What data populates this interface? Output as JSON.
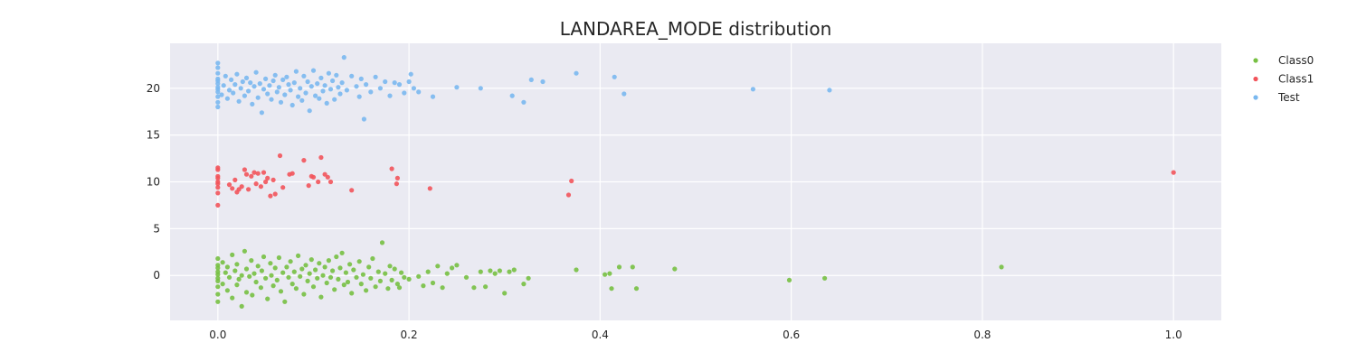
{
  "chart_data": {
    "type": "scatter",
    "title": "LANDAREA_MODE distribution",
    "xlabel": "",
    "ylabel": "",
    "xlim": [
      -0.05,
      1.05
    ],
    "ylim": [
      -4.8,
      24.8
    ],
    "xticks": [
      0.0,
      0.2,
      0.4,
      0.6,
      0.8,
      1.0
    ],
    "xtick_labels": [
      "0.0",
      "0.2",
      "0.4",
      "0.6",
      "0.8",
      "1.0"
    ],
    "yticks": [
      0,
      5,
      10,
      15,
      20
    ],
    "ytick_labels": [
      "0",
      "5",
      "10",
      "15",
      "20"
    ],
    "grid": true,
    "legend_position": "right, outside plot",
    "series": [
      {
        "name": "Class0",
        "color": "#77c043",
        "points": [
          [
            0.0,
            -0.3
          ],
          [
            0.0,
            0.4
          ],
          [
            0.0,
            -1.2
          ],
          [
            0.0,
            1.1
          ],
          [
            0.0,
            -2.0
          ],
          [
            0.0,
            0.8
          ],
          [
            0.0,
            -0.6
          ],
          [
            0.0,
            1.8
          ],
          [
            0.0,
            -2.8
          ],
          [
            0.0,
            0.1
          ],
          [
            0.005,
            -0.9
          ],
          [
            0.005,
            1.4
          ],
          [
            0.008,
            0.3
          ],
          [
            0.01,
            -1.6
          ],
          [
            0.01,
            0.9
          ],
          [
            0.012,
            -0.2
          ],
          [
            0.015,
            2.2
          ],
          [
            0.015,
            -2.4
          ],
          [
            0.018,
            0.5
          ],
          [
            0.02,
            -1.0
          ],
          [
            0.02,
            1.2
          ],
          [
            0.022,
            -0.4
          ],
          [
            0.025,
            0.0
          ],
          [
            0.025,
            -3.3
          ],
          [
            0.028,
            2.6
          ],
          [
            0.03,
            -1.8
          ],
          [
            0.03,
            0.7
          ],
          [
            0.033,
            -0.1
          ],
          [
            0.035,
            1.6
          ],
          [
            0.036,
            -2.1
          ],
          [
            0.038,
            0.2
          ],
          [
            0.04,
            -0.7
          ],
          [
            0.042,
            1.0
          ],
          [
            0.045,
            -1.3
          ],
          [
            0.046,
            0.5
          ],
          [
            0.048,
            2.0
          ],
          [
            0.05,
            -0.3
          ],
          [
            0.052,
            -2.5
          ],
          [
            0.055,
            1.3
          ],
          [
            0.056,
            0.0
          ],
          [
            0.058,
            -1.1
          ],
          [
            0.06,
            0.8
          ],
          [
            0.062,
            -0.5
          ],
          [
            0.064,
            1.9
          ],
          [
            0.066,
            -1.7
          ],
          [
            0.068,
            0.3
          ],
          [
            0.07,
            -2.8
          ],
          [
            0.072,
            0.9
          ],
          [
            0.074,
            -0.2
          ],
          [
            0.076,
            1.5
          ],
          [
            0.078,
            -0.9
          ],
          [
            0.08,
            0.4
          ],
          [
            0.082,
            -1.4
          ],
          [
            0.084,
            2.1
          ],
          [
            0.086,
            -0.1
          ],
          [
            0.088,
            0.7
          ],
          [
            0.09,
            -2.0
          ],
          [
            0.092,
            1.1
          ],
          [
            0.094,
            -0.6
          ],
          [
            0.096,
            0.2
          ],
          [
            0.098,
            1.7
          ],
          [
            0.1,
            -1.2
          ],
          [
            0.102,
            0.6
          ],
          [
            0.104,
            -0.3
          ],
          [
            0.106,
            1.3
          ],
          [
            0.108,
            -2.3
          ],
          [
            0.11,
            0.0
          ],
          [
            0.112,
            0.9
          ],
          [
            0.114,
            -0.8
          ],
          [
            0.116,
            1.6
          ],
          [
            0.118,
            -0.2
          ],
          [
            0.12,
            0.5
          ],
          [
            0.122,
            -1.5
          ],
          [
            0.124,
            2.0
          ],
          [
            0.126,
            -0.4
          ],
          [
            0.128,
            0.8
          ],
          [
            0.13,
            2.4
          ],
          [
            0.132,
            -1.0
          ],
          [
            0.134,
            0.3
          ],
          [
            0.136,
            -0.7
          ],
          [
            0.138,
            1.2
          ],
          [
            0.14,
            -1.9
          ],
          [
            0.142,
            0.6
          ],
          [
            0.145,
            -0.2
          ],
          [
            0.148,
            1.5
          ],
          [
            0.15,
            -0.9
          ],
          [
            0.152,
            0.1
          ],
          [
            0.155,
            -1.6
          ],
          [
            0.158,
            0.9
          ],
          [
            0.16,
            -0.3
          ],
          [
            0.162,
            1.8
          ],
          [
            0.165,
            -1.2
          ],
          [
            0.168,
            0.4
          ],
          [
            0.17,
            -0.6
          ],
          [
            0.172,
            3.5
          ],
          [
            0.175,
            0.2
          ],
          [
            0.178,
            -1.4
          ],
          [
            0.18,
            1.0
          ],
          [
            0.182,
            -0.5
          ],
          [
            0.185,
            0.7
          ],
          [
            0.188,
            -0.9
          ],
          [
            0.19,
            -1.3
          ],
          [
            0.192,
            0.3
          ],
          [
            0.195,
            -0.2
          ],
          [
            0.2,
            -0.4
          ],
          [
            0.21,
            -0.1
          ],
          [
            0.215,
            -1.1
          ],
          [
            0.22,
            0.4
          ],
          [
            0.225,
            -0.8
          ],
          [
            0.23,
            1.0
          ],
          [
            0.235,
            -1.3
          ],
          [
            0.24,
            0.2
          ],
          [
            0.245,
            0.8
          ],
          [
            0.25,
            1.1
          ],
          [
            0.26,
            -0.2
          ],
          [
            0.268,
            -1.3
          ],
          [
            0.275,
            0.4
          ],
          [
            0.28,
            -1.2
          ],
          [
            0.285,
            0.5
          ],
          [
            0.29,
            0.2
          ],
          [
            0.295,
            0.5
          ],
          [
            0.3,
            -1.9
          ],
          [
            0.305,
            0.4
          ],
          [
            0.31,
            0.6
          ],
          [
            0.32,
            -0.9
          ],
          [
            0.325,
            -0.3
          ],
          [
            0.375,
            0.6
          ],
          [
            0.405,
            0.1
          ],
          [
            0.41,
            0.2
          ],
          [
            0.412,
            -1.4
          ],
          [
            0.42,
            0.9
          ],
          [
            0.434,
            0.9
          ],
          [
            0.438,
            -1.4
          ],
          [
            0.478,
            0.7
          ],
          [
            0.598,
            -0.5
          ],
          [
            0.635,
            -0.3
          ],
          [
            0.82,
            0.9
          ]
        ]
      },
      {
        "name": "Class1",
        "color": "#f2545b",
        "points": [
          [
            0.0,
            7.5
          ],
          [
            0.0,
            8.8
          ],
          [
            0.0,
            9.4
          ],
          [
            0.0,
            10.0
          ],
          [
            0.0,
            10.4
          ],
          [
            0.0,
            11.3
          ],
          [
            0.0,
            11.5
          ],
          [
            0.0,
            9.8
          ],
          [
            0.0,
            10.6
          ],
          [
            0.012,
            9.7
          ],
          [
            0.015,
            9.3
          ],
          [
            0.018,
            10.2
          ],
          [
            0.02,
            8.9
          ],
          [
            0.022,
            9.2
          ],
          [
            0.025,
            9.5
          ],
          [
            0.028,
            11.3
          ],
          [
            0.03,
            10.8
          ],
          [
            0.032,
            9.2
          ],
          [
            0.035,
            10.6
          ],
          [
            0.038,
            11.0
          ],
          [
            0.04,
            9.8
          ],
          [
            0.042,
            10.9
          ],
          [
            0.045,
            9.5
          ],
          [
            0.048,
            11.0
          ],
          [
            0.05,
            10.0
          ],
          [
            0.052,
            10.4
          ],
          [
            0.055,
            8.5
          ],
          [
            0.058,
            10.2
          ],
          [
            0.06,
            8.7
          ],
          [
            0.065,
            12.8
          ],
          [
            0.068,
            9.4
          ],
          [
            0.075,
            10.8
          ],
          [
            0.078,
            10.9
          ],
          [
            0.09,
            12.3
          ],
          [
            0.095,
            9.6
          ],
          [
            0.098,
            10.6
          ],
          [
            0.1,
            10.5
          ],
          [
            0.105,
            10.0
          ],
          [
            0.108,
            12.6
          ],
          [
            0.112,
            10.8
          ],
          [
            0.115,
            10.5
          ],
          [
            0.118,
            10.0
          ],
          [
            0.14,
            9.1
          ],
          [
            0.182,
            11.4
          ],
          [
            0.187,
            9.8
          ],
          [
            0.188,
            10.4
          ],
          [
            0.222,
            9.3
          ],
          [
            0.367,
            8.6
          ],
          [
            0.37,
            10.1
          ],
          [
            1.0,
            11.0
          ]
        ]
      },
      {
        "name": "Test",
        "color": "#7ab8ef",
        "points": [
          [
            0.0,
            18.0
          ],
          [
            0.0,
            18.5
          ],
          [
            0.0,
            19.1
          ],
          [
            0.0,
            19.6
          ],
          [
            0.0,
            20.1
          ],
          [
            0.0,
            20.5
          ],
          [
            0.0,
            21.0
          ],
          [
            0.0,
            21.6
          ],
          [
            0.0,
            22.2
          ],
          [
            0.0,
            22.7
          ],
          [
            0.0,
            19.9
          ],
          [
            0.0,
            20.8
          ],
          [
            0.004,
            19.3
          ],
          [
            0.006,
            20.3
          ],
          [
            0.008,
            21.3
          ],
          [
            0.01,
            18.9
          ],
          [
            0.012,
            19.8
          ],
          [
            0.014,
            20.9
          ],
          [
            0.016,
            19.5
          ],
          [
            0.018,
            20.4
          ],
          [
            0.02,
            21.5
          ],
          [
            0.022,
            18.6
          ],
          [
            0.024,
            20.0
          ],
          [
            0.026,
            20.7
          ],
          [
            0.028,
            19.2
          ],
          [
            0.03,
            21.1
          ],
          [
            0.032,
            19.7
          ],
          [
            0.034,
            20.6
          ],
          [
            0.036,
            18.3
          ],
          [
            0.038,
            20.2
          ],
          [
            0.04,
            21.7
          ],
          [
            0.042,
            19.0
          ],
          [
            0.044,
            20.5
          ],
          [
            0.046,
            17.4
          ],
          [
            0.048,
            19.9
          ],
          [
            0.05,
            21.0
          ],
          [
            0.052,
            19.4
          ],
          [
            0.054,
            20.3
          ],
          [
            0.056,
            18.8
          ],
          [
            0.058,
            20.8
          ],
          [
            0.06,
            21.4
          ],
          [
            0.062,
            19.6
          ],
          [
            0.064,
            20.1
          ],
          [
            0.066,
            18.5
          ],
          [
            0.068,
            20.9
          ],
          [
            0.07,
            19.3
          ],
          [
            0.072,
            21.2
          ],
          [
            0.074,
            20.4
          ],
          [
            0.076,
            19.8
          ],
          [
            0.078,
            18.2
          ],
          [
            0.08,
            20.6
          ],
          [
            0.082,
            21.8
          ],
          [
            0.084,
            19.1
          ],
          [
            0.086,
            20.0
          ],
          [
            0.088,
            18.7
          ],
          [
            0.09,
            21.3
          ],
          [
            0.092,
            19.5
          ],
          [
            0.094,
            20.7
          ],
          [
            0.096,
            17.6
          ],
          [
            0.098,
            20.2
          ],
          [
            0.1,
            21.9
          ],
          [
            0.102,
            19.2
          ],
          [
            0.104,
            20.5
          ],
          [
            0.106,
            18.9
          ],
          [
            0.108,
            21.1
          ],
          [
            0.11,
            19.7
          ],
          [
            0.112,
            20.3
          ],
          [
            0.114,
            18.4
          ],
          [
            0.116,
            21.6
          ],
          [
            0.118,
            19.9
          ],
          [
            0.12,
            20.8
          ],
          [
            0.122,
            18.8
          ],
          [
            0.124,
            21.4
          ],
          [
            0.126,
            20.1
          ],
          [
            0.128,
            19.4
          ],
          [
            0.13,
            20.6
          ],
          [
            0.132,
            23.3
          ],
          [
            0.135,
            19.8
          ],
          [
            0.14,
            21.3
          ],
          [
            0.145,
            20.2
          ],
          [
            0.148,
            19.1
          ],
          [
            0.15,
            21.0
          ],
          [
            0.153,
            16.7
          ],
          [
            0.155,
            20.4
          ],
          [
            0.16,
            19.6
          ],
          [
            0.165,
            21.2
          ],
          [
            0.17,
            20.0
          ],
          [
            0.175,
            20.7
          ],
          [
            0.18,
            19.2
          ],
          [
            0.185,
            20.6
          ],
          [
            0.19,
            20.4
          ],
          [
            0.195,
            19.5
          ],
          [
            0.2,
            20.7
          ],
          [
            0.202,
            21.5
          ],
          [
            0.205,
            20.0
          ],
          [
            0.21,
            19.6
          ],
          [
            0.225,
            19.1
          ],
          [
            0.25,
            20.1
          ],
          [
            0.275,
            20.0
          ],
          [
            0.308,
            19.2
          ],
          [
            0.32,
            18.5
          ],
          [
            0.328,
            20.9
          ],
          [
            0.34,
            20.7
          ],
          [
            0.375,
            21.6
          ],
          [
            0.415,
            21.2
          ],
          [
            0.425,
            19.4
          ],
          [
            0.56,
            19.9
          ],
          [
            0.64,
            19.8
          ]
        ]
      }
    ]
  }
}
